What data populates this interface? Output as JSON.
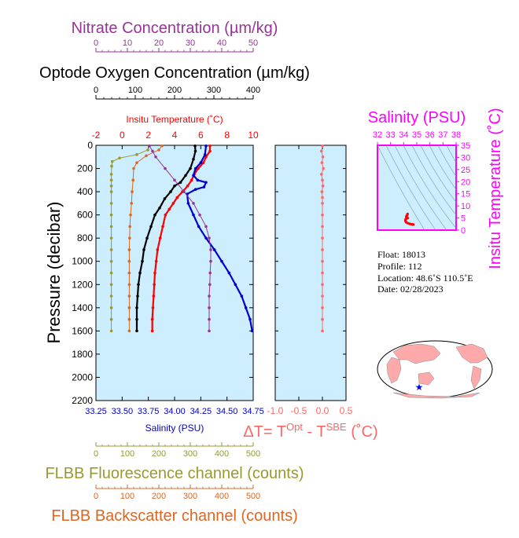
{
  "colors": {
    "nitrate": "#993399",
    "oxygen": "#000000",
    "temperature": "#ff0000",
    "salinity": "#0000cc",
    "fluorescence": "#999933",
    "backscatter": "#dd6622",
    "delta_t": "#ff6666",
    "ts_inset": "#ff00ff",
    "plot_bg": "#cceeff"
  },
  "titles": {
    "nitrate": "Nitrate Concentration (µm/kg)",
    "oxygen": "Optode Oxygen Concentration (µm/kg)",
    "temperature": "Insitu Temperature (˚C)",
    "salinity": "Salinity (PSU)",
    "fluorescence": "FLBB Fluorescence channel (counts)",
    "backscatter": "FLBB Backscatter channel (counts)",
    "pressure": "Pressure (decibar)",
    "delta_t_prefix": "ΔT= T",
    "delta_t_sup1": "Opt",
    "delta_t_mid": " - T",
    "delta_t_sup2": "SBE",
    "delta_t_suffix": " (˚C)",
    "ts_salinity": "Salinity (PSU)",
    "ts_temperature": "Insitu Temperature (˚C)"
  },
  "info": {
    "float": "Float:  18013",
    "profile": "Profile:  112",
    "location": "Location:  48.6˚S  110.5˚E",
    "date": "Date:  02/28/2023"
  },
  "chart_data": [
    {
      "type": "line",
      "id": "main-profile",
      "y_axis": {
        "label": "Pressure (decibar)",
        "range": [
          2200,
          0
        ],
        "ticks": [
          "0",
          "200",
          "400",
          "600",
          "800",
          "1000",
          "1200",
          "1400",
          "1600",
          "1800",
          "2000",
          "2200"
        ]
      },
      "axes": {
        "nitrate": {
          "range": [
            0,
            50
          ],
          "ticks": [
            "0",
            "10",
            "20",
            "30",
            "40",
            "50"
          ]
        },
        "oxygen": {
          "range": [
            0,
            400
          ],
          "ticks": [
            "0",
            "100",
            "200",
            "300",
            "400"
          ]
        },
        "temperature": {
          "range": [
            -2,
            10
          ],
          "ticks": [
            "-2",
            "0",
            "2",
            "4",
            "6",
            "8",
            "10"
          ]
        },
        "salinity": {
          "range": [
            33.25,
            34.75
          ],
          "ticks": [
            "33.25",
            "33.50",
            "33.75",
            "34.00",
            "34.25",
            "34.50",
            "34.75"
          ]
        },
        "fluorescence": {
          "range": [
            0,
            500
          ],
          "ticks": [
            "0",
            "100",
            "200",
            "300",
            "400",
            "500"
          ]
        },
        "backscatter": {
          "range": [
            0,
            500
          ],
          "ticks": [
            "0",
            "100",
            "200",
            "300",
            "400",
            "500"
          ]
        }
      },
      "series": [
        {
          "key": "fluorescence",
          "axis": "fluorescence",
          "points": [
            [
              170,
              5
            ],
            [
              165,
              40
            ],
            [
              130,
              80
            ],
            [
              75,
              110
            ],
            [
              52,
              140
            ],
            [
              50,
              180
            ],
            [
              49,
              250
            ],
            [
              49,
              300
            ],
            [
              49,
              350
            ],
            [
              49,
              400
            ],
            [
              49,
              500
            ],
            [
              49,
              600
            ],
            [
              49,
              700
            ],
            [
              49,
              800
            ],
            [
              49,
              900
            ],
            [
              49,
              1000
            ],
            [
              49,
              1100
            ],
            [
              49,
              1200
            ],
            [
              49,
              1300
            ],
            [
              49,
              1400
            ],
            [
              49,
              1500
            ],
            [
              49,
              1600
            ]
          ]
        },
        {
          "key": "backscatter",
          "axis": "backscatter",
          "points": [
            [
              210,
              5
            ],
            [
              200,
              40
            ],
            [
              160,
              90
            ],
            [
              130,
              150
            ],
            [
              120,
              200
            ],
            [
              118,
              300
            ],
            [
              115,
              400
            ],
            [
              113,
              500
            ],
            [
              110,
              600
            ],
            [
              108,
              700
            ],
            [
              107,
              800
            ],
            [
              106,
              900
            ],
            [
              106,
              1000
            ],
            [
              106,
              1100
            ],
            [
              106,
              1200
            ],
            [
              106,
              1300
            ],
            [
              106,
              1400
            ],
            [
              106,
              1500
            ],
            [
              106,
              1600
            ]
          ]
        },
        {
          "key": "temperature",
          "axis": "temperature",
          "points": [
            [
              6.7,
              5
            ],
            [
              6.7,
              50
            ],
            [
              6.4,
              100
            ],
            [
              6.2,
              150
            ],
            [
              5.8,
              200
            ],
            [
              5.5,
              250
            ],
            [
              5.3,
              300
            ],
            [
              5.0,
              350
            ],
            [
              4.6,
              400
            ],
            [
              4.2,
              450
            ],
            [
              3.9,
              500
            ],
            [
              3.6,
              550
            ],
            [
              3.3,
              600
            ],
            [
              3.1,
              700
            ],
            [
              2.9,
              800
            ],
            [
              2.7,
              900
            ],
            [
              2.6,
              1000
            ],
            [
              2.5,
              1100
            ],
            [
              2.45,
              1200
            ],
            [
              2.4,
              1300
            ],
            [
              2.35,
              1400
            ],
            [
              2.3,
              1500
            ],
            [
              2.3,
              1600
            ]
          ]
        },
        {
          "key": "salinity",
          "axis": "salinity",
          "points": [
            [
              34.3,
              5
            ],
            [
              34.29,
              80
            ],
            [
              34.25,
              150
            ],
            [
              34.2,
              200
            ],
            [
              34.18,
              260
            ],
            [
              34.22,
              300
            ],
            [
              34.3,
              320
            ],
            [
              34.28,
              360
            ],
            [
              34.2,
              380
            ],
            [
              34.12,
              420
            ],
            [
              34.13,
              500
            ],
            [
              34.18,
              600
            ],
            [
              34.23,
              700
            ],
            [
              34.3,
              800
            ],
            [
              34.38,
              900
            ],
            [
              34.45,
              1000
            ],
            [
              34.52,
              1100
            ],
            [
              34.58,
              1200
            ],
            [
              34.64,
              1300
            ],
            [
              34.68,
              1400
            ],
            [
              34.72,
              1500
            ],
            [
              34.74,
              1600
            ]
          ]
        },
        {
          "key": "oxygen",
          "axis": "oxygen",
          "points": [
            [
              252,
              5
            ],
            [
              253,
              50
            ],
            [
              248,
              120
            ],
            [
              240,
              200
            ],
            [
              228,
              260
            ],
            [
              215,
              320
            ],
            [
              200,
              350
            ],
            [
              190,
              400
            ],
            [
              175,
              460
            ],
            [
              162,
              540
            ],
            [
              150,
              600
            ],
            [
              140,
              700
            ],
            [
              130,
              800
            ],
            [
              122,
              900
            ],
            [
              118,
              1000
            ],
            [
              112,
              1100
            ],
            [
              108,
              1200
            ],
            [
              106,
              1300
            ],
            [
              104,
              1400
            ],
            [
              104,
              1500
            ],
            [
              104,
              1600
            ]
          ]
        },
        {
          "key": "nitrate",
          "axis": "nitrate",
          "points": [
            [
              17,
              5
            ],
            [
              18,
              50
            ],
            [
              19,
              100
            ],
            [
              22,
              200
            ],
            [
              25,
              300
            ],
            [
              28,
              400
            ],
            [
              31,
              500
            ],
            [
              33,
              600
            ],
            [
              35,
              700
            ],
            [
              36,
              800
            ],
            [
              36.5,
              900
            ],
            [
              36.5,
              1000
            ],
            [
              36.3,
              1100
            ],
            [
              36.2,
              1200
            ],
            [
              36.0,
              1300
            ],
            [
              36.0,
              1400
            ],
            [
              36.0,
              1500
            ],
            [
              36.0,
              1600
            ]
          ]
        }
      ]
    },
    {
      "type": "line",
      "id": "delta-t-profile",
      "x_axis": {
        "range": [
          -1.0,
          0.5
        ],
        "ticks": [
          "-1.0",
          "-0.5",
          "0.0",
          "0.5"
        ]
      },
      "y_axis": {
        "range": [
          2200,
          0
        ]
      },
      "series": [
        {
          "key": "delta_t",
          "points": [
            [
              0.0,
              5
            ],
            [
              -0.02,
              50
            ],
            [
              0.01,
              100
            ],
            [
              -0.01,
              150
            ],
            [
              0.02,
              200
            ],
            [
              -0.02,
              250
            ],
            [
              0.0,
              300
            ],
            [
              0.01,
              350
            ],
            [
              -0.01,
              400
            ],
            [
              0.0,
              450
            ],
            [
              0.0,
              500
            ],
            [
              0.0,
              600
            ],
            [
              0.0,
              700
            ],
            [
              0.0,
              800
            ],
            [
              0.0,
              900
            ],
            [
              0.0,
              1000
            ],
            [
              0.0,
              1100
            ],
            [
              0.0,
              1200
            ],
            [
              0.0,
              1300
            ],
            [
              0.0,
              1400
            ],
            [
              0.0,
              1500
            ],
            [
              0.0,
              1600
            ]
          ]
        }
      ]
    },
    {
      "type": "scatter",
      "id": "ts-diagram",
      "x_axis": {
        "label": "Salinity (PSU)",
        "range": [
          32,
          38
        ],
        "ticks": [
          "32",
          "33",
          "34",
          "35",
          "36",
          "37",
          "38"
        ]
      },
      "y_axis": {
        "label": "Insitu Temperature (˚C)",
        "range": [
          0,
          35
        ],
        "ticks": [
          "0",
          "5",
          "10",
          "15",
          "20",
          "25",
          "30",
          "35"
        ]
      },
      "series": [
        {
          "key": "ts",
          "points": [
            [
              34.3,
              6.7
            ],
            [
              34.28,
              6.4
            ],
            [
              34.22,
              5.8
            ],
            [
              34.2,
              5.5
            ],
            [
              34.3,
              5.0
            ],
            [
              34.15,
              4.5
            ],
            [
              34.13,
              3.9
            ],
            [
              34.18,
              3.3
            ],
            [
              34.3,
              2.9
            ],
            [
              34.45,
              2.6
            ],
            [
              34.58,
              2.45
            ],
            [
              34.68,
              2.35
            ],
            [
              34.74,
              2.3
            ]
          ]
        }
      ]
    }
  ]
}
